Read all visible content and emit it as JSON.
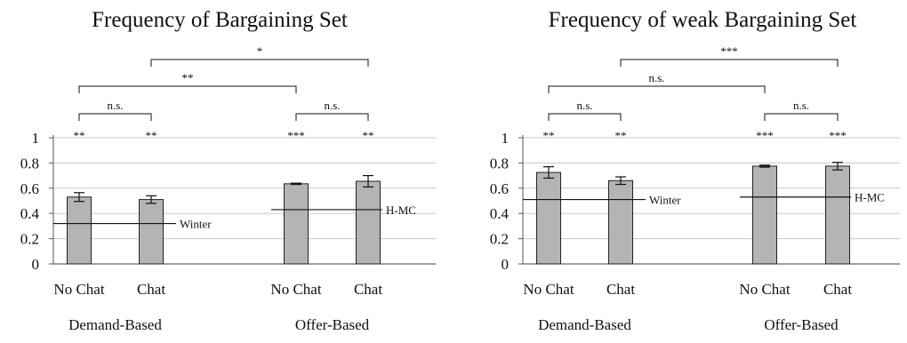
{
  "chart_data": [
    {
      "type": "bar",
      "title": "Frequency of Bargaining Set",
      "categories": [
        "No Chat",
        "Chat",
        "No Chat",
        "Chat"
      ],
      "groups": [
        {
          "label": "Demand-Based",
          "categories": [
            "No Chat",
            "Chat"
          ]
        },
        {
          "label": "Offer-Based",
          "categories": [
            "No Chat",
            "Chat"
          ]
        }
      ],
      "values": [
        0.53,
        0.51,
        0.635,
        0.655
      ],
      "errors": [
        0.035,
        0.03,
        0.005,
        0.045
      ],
      "ylim": [
        0,
        1
      ],
      "yticks": [
        "0",
        "0.2",
        "0.4",
        "0.6",
        "0.8",
        "1"
      ],
      "grid": true,
      "bar_significance": [
        "**",
        "**",
        "***",
        "**"
      ],
      "reference_lines": [
        {
          "label": "Winter",
          "value": 0.32,
          "group": 0
        },
        {
          "label": "H-MC",
          "value": 0.43,
          "group": 1
        }
      ],
      "brackets": [
        {
          "from": 0,
          "to": 1,
          "label": "n.s."
        },
        {
          "from": 2,
          "to": 3,
          "label": "n.s."
        },
        {
          "from": 0,
          "to": 2,
          "label": "**"
        },
        {
          "from": 1,
          "to": 3,
          "label": "*"
        }
      ],
      "colors": {
        "bar": "#b4b4b4",
        "grid": "#c8c8c8"
      }
    },
    {
      "type": "bar",
      "title": "Frequency of weak Bargaining Set",
      "categories": [
        "No Chat",
        "Chat",
        "No Chat",
        "Chat"
      ],
      "groups": [
        {
          "label": "Demand-Based",
          "categories": [
            "No Chat",
            "Chat"
          ]
        },
        {
          "label": "Offer-Based",
          "categories": [
            "No Chat",
            "Chat"
          ]
        }
      ],
      "values": [
        0.725,
        0.66,
        0.775,
        0.775
      ],
      "errors": [
        0.045,
        0.03,
        0.008,
        0.03
      ],
      "ylim": [
        0,
        1
      ],
      "yticks": [
        "0",
        "0.2",
        "0.4",
        "0.6",
        "0.8",
        "1"
      ],
      "grid": true,
      "bar_significance": [
        "**",
        "**",
        "***",
        "***"
      ],
      "reference_lines": [
        {
          "label": "Winter",
          "value": 0.51,
          "group": 0
        },
        {
          "label": "H-MC",
          "value": 0.53,
          "group": 1
        }
      ],
      "brackets": [
        {
          "from": 0,
          "to": 1,
          "label": "n.s."
        },
        {
          "from": 2,
          "to": 3,
          "label": "n.s."
        },
        {
          "from": 0,
          "to": 2,
          "label": "n.s."
        },
        {
          "from": 1,
          "to": 3,
          "label": "***"
        }
      ],
      "colors": {
        "bar": "#b4b4b4",
        "grid": "#c8c8c8"
      }
    }
  ]
}
